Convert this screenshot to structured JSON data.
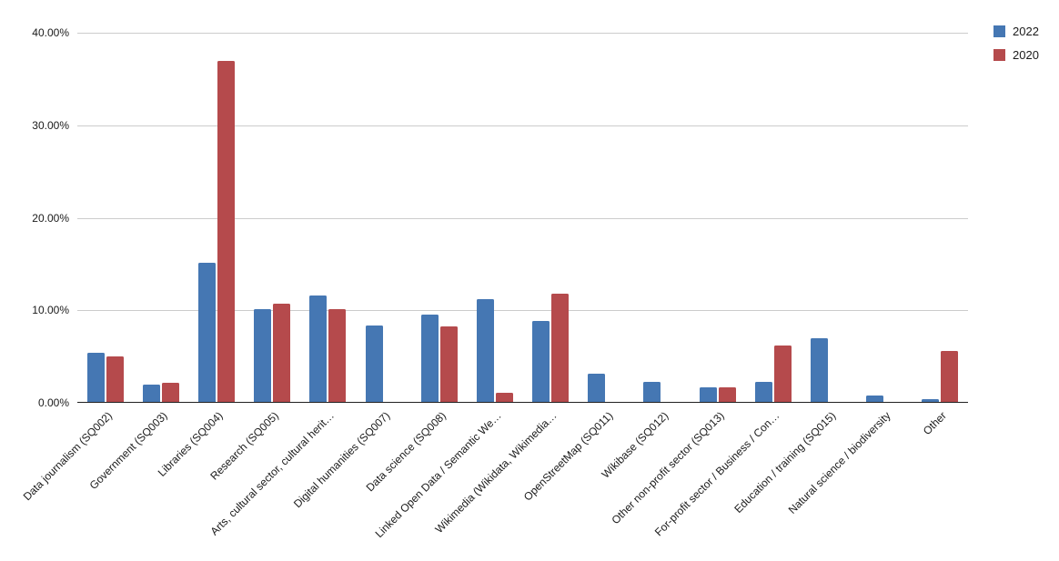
{
  "chart_data": {
    "type": "bar",
    "title": "",
    "xlabel": "",
    "ylabel": "",
    "ylim": [
      0,
      40
    ],
    "grid": true,
    "legend_position": "top-right",
    "y_tick_labels": [
      "40.00%",
      "30.00%",
      "20.00%",
      "10.00%",
      "0.00%"
    ],
    "categories": [
      "Data journalism (SQ002)",
      "Government (SQ003)",
      "Libraries (SQ004)",
      "Research (SQ005)",
      "Arts, cultural sector, cultural herit…",
      "Digital humanities (SQ007)",
      "Data science (SQ008)",
      "Linked Open Data / Semantic We…",
      "Wikimedia (Wikidata, Wikimedia…",
      "OpenStreetMap (SQ011)",
      "Wikibase (SQ012)",
      "Other non-profit sector (SQ013)",
      "For-profit sector / Business / Con…",
      "Education / training (SQ015)",
      "Natural science / biodiversity",
      "Other"
    ],
    "series": [
      {
        "name": "2022",
        "color": "#4577B3",
        "values": [
          5.4,
          2.0,
          15.1,
          10.1,
          11.6,
          8.4,
          9.5,
          11.2,
          8.8,
          3.1,
          2.3,
          1.7,
          2.3,
          7.0,
          0.8,
          0.4
        ]
      },
      {
        "name": "2020",
        "color": "#B54A4C",
        "values": [
          5.0,
          2.2,
          37.0,
          10.7,
          10.1,
          0,
          8.3,
          1.1,
          11.8,
          0,
          0,
          1.7,
          6.2,
          0,
          0,
          5.6
        ]
      }
    ],
    "grid_color": "#cccccc",
    "axis_color": "#212121",
    "text_color": "#1a1a1a"
  }
}
